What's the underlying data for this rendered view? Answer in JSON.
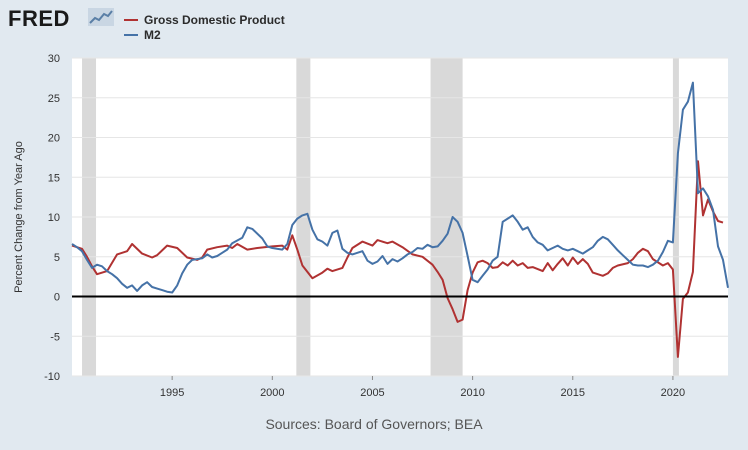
{
  "logo_text": "FRED",
  "source": "Sources: Board of Governors; BEA",
  "colors": {
    "gdp": "#b03232",
    "m2": "#4572a7",
    "recession": "#d9d9d9",
    "background": "#e1e9f0",
    "plot": "#ffffff"
  },
  "chart_data": {
    "type": "line",
    "ylabel": "Percent Change from Year Ago",
    "xlim": [
      1990.0,
      2022.75
    ],
    "ylim": [
      -10,
      30
    ],
    "yticks": [
      -10,
      -5,
      0,
      5,
      10,
      15,
      20,
      25,
      30
    ],
    "xticks": [
      1995,
      2000,
      2005,
      2010,
      2015,
      2020
    ],
    "legend_position": "top-left",
    "recessions": [
      [
        1990.5,
        1991.2
      ],
      [
        2001.2,
        2001.9
      ],
      [
        2007.9,
        2009.5
      ],
      [
        2020.0,
        2020.3
      ]
    ],
    "series": [
      {
        "name": "Gross Domestic Product",
        "color": "#b03232",
        "points": [
          [
            1990.0,
            6.4
          ],
          [
            1990.5,
            6.0
          ],
          [
            1990.75,
            5.0
          ],
          [
            1991.0,
            3.8
          ],
          [
            1991.25,
            2.8
          ],
          [
            1991.75,
            3.2
          ],
          [
            1992.25,
            5.3
          ],
          [
            1992.75,
            5.7
          ],
          [
            1993.0,
            6.6
          ],
          [
            1993.5,
            5.4
          ],
          [
            1994.0,
            4.9
          ],
          [
            1994.25,
            5.2
          ],
          [
            1994.75,
            6.4
          ],
          [
            1995.25,
            6.1
          ],
          [
            1995.75,
            4.9
          ],
          [
            1996.25,
            4.6
          ],
          [
            1996.5,
            4.9
          ],
          [
            1996.75,
            5.9
          ],
          [
            1997.25,
            6.2
          ],
          [
            1997.75,
            6.4
          ],
          [
            1998.0,
            6.1
          ],
          [
            1998.25,
            6.6
          ],
          [
            1998.75,
            5.9
          ],
          [
            1999.25,
            6.1
          ],
          [
            2000.0,
            6.3
          ],
          [
            2000.5,
            6.4
          ],
          [
            2000.75,
            5.9
          ],
          [
            2001.0,
            7.7
          ],
          [
            2001.25,
            5.9
          ],
          [
            2001.5,
            3.9
          ],
          [
            2001.75,
            3.1
          ],
          [
            2002.0,
            2.3
          ],
          [
            2002.5,
            3.0
          ],
          [
            2002.75,
            3.5
          ],
          [
            2003.0,
            3.2
          ],
          [
            2003.5,
            3.6
          ],
          [
            2003.75,
            4.9
          ],
          [
            2004.0,
            6.1
          ],
          [
            2004.5,
            6.9
          ],
          [
            2005.0,
            6.4
          ],
          [
            2005.25,
            7.1
          ],
          [
            2005.75,
            6.7
          ],
          [
            2006.0,
            6.9
          ],
          [
            2006.5,
            6.2
          ],
          [
            2007.0,
            5.3
          ],
          [
            2007.5,
            5.0
          ],
          [
            2008.0,
            4.0
          ],
          [
            2008.25,
            3.1
          ],
          [
            2008.5,
            2.1
          ],
          [
            2008.75,
            -0.2
          ],
          [
            2009.0,
            -1.6
          ],
          [
            2009.25,
            -3.2
          ],
          [
            2009.5,
            -2.9
          ],
          [
            2009.75,
            0.8
          ],
          [
            2010.0,
            3.0
          ],
          [
            2010.25,
            4.3
          ],
          [
            2010.5,
            4.5
          ],
          [
            2010.75,
            4.2
          ],
          [
            2011.0,
            3.6
          ],
          [
            2011.25,
            3.7
          ],
          [
            2011.5,
            4.3
          ],
          [
            2011.75,
            3.9
          ],
          [
            2012.0,
            4.5
          ],
          [
            2012.25,
            3.9
          ],
          [
            2012.5,
            4.2
          ],
          [
            2012.75,
            3.6
          ],
          [
            2013.0,
            3.7
          ],
          [
            2013.5,
            3.2
          ],
          [
            2013.75,
            4.2
          ],
          [
            2014.0,
            3.3
          ],
          [
            2014.25,
            4.1
          ],
          [
            2014.5,
            4.8
          ],
          [
            2014.75,
            3.9
          ],
          [
            2015.0,
            4.9
          ],
          [
            2015.25,
            4.1
          ],
          [
            2015.5,
            4.7
          ],
          [
            2015.75,
            4.1
          ],
          [
            2016.0,
            3.0
          ],
          [
            2016.5,
            2.6
          ],
          [
            2016.75,
            2.9
          ],
          [
            2017.0,
            3.6
          ],
          [
            2017.25,
            3.9
          ],
          [
            2017.75,
            4.2
          ],
          [
            2018.0,
            4.7
          ],
          [
            2018.25,
            5.5
          ],
          [
            2018.5,
            6.0
          ],
          [
            2018.75,
            5.7
          ],
          [
            2019.0,
            4.7
          ],
          [
            2019.5,
            3.9
          ],
          [
            2019.75,
            4.2
          ],
          [
            2020.0,
            3.4
          ],
          [
            2020.25,
            -7.6
          ],
          [
            2020.5,
            -0.3
          ],
          [
            2020.75,
            0.5
          ],
          [
            2021.0,
            3.1
          ],
          [
            2021.25,
            17.0
          ],
          [
            2021.5,
            10.2
          ],
          [
            2021.75,
            12.2
          ],
          [
            2022.0,
            10.7
          ],
          [
            2022.25,
            9.5
          ],
          [
            2022.5,
            9.3
          ]
        ]
      },
      {
        "name": "M2",
        "color": "#4572a7",
        "points": [
          [
            1990.0,
            6.6
          ],
          [
            1990.25,
            6.2
          ],
          [
            1990.5,
            5.7
          ],
          [
            1990.75,
            4.6
          ],
          [
            1991.0,
            3.6
          ],
          [
            1991.25,
            4.0
          ],
          [
            1991.5,
            3.8
          ],
          [
            1991.75,
            3.2
          ],
          [
            1992.0,
            2.8
          ],
          [
            1992.25,
            2.3
          ],
          [
            1992.5,
            1.6
          ],
          [
            1992.75,
            1.1
          ],
          [
            1993.0,
            1.4
          ],
          [
            1993.25,
            0.7
          ],
          [
            1993.5,
            1.4
          ],
          [
            1993.75,
            1.8
          ],
          [
            1994.0,
            1.2
          ],
          [
            1994.25,
            1.0
          ],
          [
            1994.5,
            0.8
          ],
          [
            1994.75,
            0.6
          ],
          [
            1995.0,
            0.5
          ],
          [
            1995.25,
            1.4
          ],
          [
            1995.5,
            2.9
          ],
          [
            1995.75,
            4.0
          ],
          [
            1996.0,
            4.6
          ],
          [
            1996.5,
            4.8
          ],
          [
            1996.75,
            5.3
          ],
          [
            1997.0,
            4.9
          ],
          [
            1997.25,
            5.1
          ],
          [
            1997.5,
            5.5
          ],
          [
            1997.75,
            5.9
          ],
          [
            1998.0,
            6.7
          ],
          [
            1998.5,
            7.4
          ],
          [
            1998.75,
            8.7
          ],
          [
            1999.0,
            8.5
          ],
          [
            1999.5,
            7.3
          ],
          [
            1999.75,
            6.3
          ],
          [
            2000.0,
            6.1
          ],
          [
            2000.5,
            5.9
          ],
          [
            2000.75,
            6.6
          ],
          [
            2001.0,
            9.0
          ],
          [
            2001.25,
            9.8
          ],
          [
            2001.5,
            10.2
          ],
          [
            2001.75,
            10.4
          ],
          [
            2002.0,
            8.4
          ],
          [
            2002.25,
            7.2
          ],
          [
            2002.5,
            6.9
          ],
          [
            2002.75,
            6.4
          ],
          [
            2003.0,
            8.0
          ],
          [
            2003.25,
            8.3
          ],
          [
            2003.5,
            6.0
          ],
          [
            2003.75,
            5.5
          ],
          [
            2004.0,
            5.3
          ],
          [
            2004.5,
            5.7
          ],
          [
            2004.75,
            4.5
          ],
          [
            2005.0,
            4.1
          ],
          [
            2005.25,
            4.4
          ],
          [
            2005.5,
            5.1
          ],
          [
            2005.75,
            4.1
          ],
          [
            2006.0,
            4.7
          ],
          [
            2006.25,
            4.4
          ],
          [
            2006.5,
            4.8
          ],
          [
            2006.75,
            5.3
          ],
          [
            2007.0,
            5.6
          ],
          [
            2007.25,
            6.1
          ],
          [
            2007.5,
            6.0
          ],
          [
            2007.75,
            6.5
          ],
          [
            2008.0,
            6.2
          ],
          [
            2008.25,
            6.3
          ],
          [
            2008.5,
            7.0
          ],
          [
            2008.75,
            7.9
          ],
          [
            2009.0,
            10.0
          ],
          [
            2009.25,
            9.4
          ],
          [
            2009.5,
            8.0
          ],
          [
            2009.75,
            5.1
          ],
          [
            2010.0,
            2.1
          ],
          [
            2010.25,
            1.8
          ],
          [
            2010.5,
            2.6
          ],
          [
            2010.75,
            3.4
          ],
          [
            2011.0,
            4.5
          ],
          [
            2011.25,
            5.0
          ],
          [
            2011.5,
            9.4
          ],
          [
            2011.75,
            9.8
          ],
          [
            2012.0,
            10.2
          ],
          [
            2012.25,
            9.4
          ],
          [
            2012.5,
            8.4
          ],
          [
            2012.75,
            8.7
          ],
          [
            2013.0,
            7.5
          ],
          [
            2013.25,
            6.8
          ],
          [
            2013.5,
            6.5
          ],
          [
            2013.75,
            5.8
          ],
          [
            2014.0,
            6.1
          ],
          [
            2014.25,
            6.4
          ],
          [
            2014.5,
            6.0
          ],
          [
            2014.75,
            5.8
          ],
          [
            2015.0,
            6.0
          ],
          [
            2015.25,
            5.7
          ],
          [
            2015.5,
            5.4
          ],
          [
            2015.75,
            5.8
          ],
          [
            2016.0,
            6.2
          ],
          [
            2016.25,
            7.0
          ],
          [
            2016.5,
            7.5
          ],
          [
            2016.75,
            7.2
          ],
          [
            2017.0,
            6.5
          ],
          [
            2017.25,
            5.8
          ],
          [
            2017.5,
            5.2
          ],
          [
            2017.75,
            4.6
          ],
          [
            2018.0,
            4.0
          ],
          [
            2018.25,
            3.9
          ],
          [
            2018.5,
            3.9
          ],
          [
            2018.75,
            3.7
          ],
          [
            2019.0,
            4.0
          ],
          [
            2019.25,
            4.5
          ],
          [
            2019.5,
            5.6
          ],
          [
            2019.75,
            7.0
          ],
          [
            2020.0,
            6.8
          ],
          [
            2020.25,
            18.0
          ],
          [
            2020.5,
            23.5
          ],
          [
            2020.75,
            24.5
          ],
          [
            2021.0,
            26.9
          ],
          [
            2021.25,
            13.0
          ],
          [
            2021.5,
            13.6
          ],
          [
            2021.75,
            12.6
          ],
          [
            2022.0,
            10.9
          ],
          [
            2022.25,
            6.3
          ],
          [
            2022.5,
            4.6
          ],
          [
            2022.75,
            1.1
          ]
        ]
      }
    ]
  }
}
